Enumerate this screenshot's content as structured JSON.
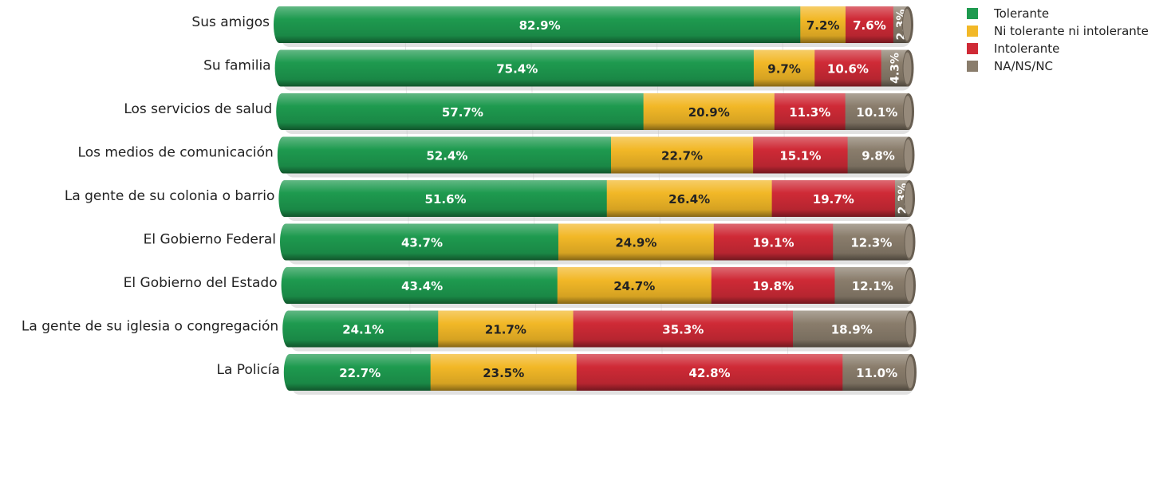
{
  "chart_data": {
    "type": "bar",
    "orientation": "horizontal",
    "stacked": true,
    "percent_stacked": true,
    "categories": [
      "Sus amigos",
      "Su familia",
      "Los servicios de salud",
      "Los medios de comunicación",
      "La gente de su colonia o barrio",
      "El Gobierno Federal",
      "El Gobierno del Estado",
      "La gente de su iglesia o congregación",
      "La Policía"
    ],
    "series": [
      {
        "name": "Tolerante",
        "color": "#1e9a4f",
        "label_color": "#ffffff",
        "values": [
          82.9,
          75.4,
          57.7,
          52.4,
          51.6,
          43.7,
          43.4,
          24.1,
          22.7
        ],
        "labels": [
          "82.9%",
          "75.4%",
          "57.7%",
          "52.4%",
          "51.6%",
          "43.7%",
          "43.4%",
          "24.1%",
          "22.7%"
        ]
      },
      {
        "name": "Ni tolerante ni intolerante",
        "color": "#f2b827",
        "label_color": "#222222",
        "values": [
          7.2,
          9.7,
          20.9,
          22.7,
          26.4,
          24.9,
          24.7,
          21.7,
          23.5
        ],
        "labels": [
          "7.2%",
          "9.7%",
          "20.9%",
          "22.7%",
          "26.4%",
          "24.9%",
          "24.7%",
          "21.7%",
          "23.5%"
        ]
      },
      {
        "name": "Intolerante",
        "color": "#cf2a36",
        "label_color": "#ffffff",
        "values": [
          7.6,
          10.6,
          11.3,
          15.1,
          19.7,
          19.1,
          19.8,
          35.3,
          42.8
        ],
        "labels": [
          "7.6%",
          "10.6%",
          "11.3%",
          "15.1%",
          "19.7%",
          "19.1%",
          "19.8%",
          "35.3%",
          "42.8%"
        ]
      },
      {
        "name": "NA/NS/NC",
        "color": "#8a7d6c",
        "label_color": "#ffffff",
        "values": [
          2.3,
          4.3,
          10.1,
          9.8,
          2.3,
          12.3,
          12.1,
          18.9,
          11.0
        ],
        "labels": [
          "2.3%",
          "4.3%",
          "10.1%",
          "9.8%",
          "2.3%",
          "12.3%",
          "12.1%",
          "18.9%",
          "11.0%"
        ]
      }
    ],
    "legend_position": "top-right",
    "grid": true,
    "title": "",
    "xlabel": "",
    "ylabel": ""
  }
}
